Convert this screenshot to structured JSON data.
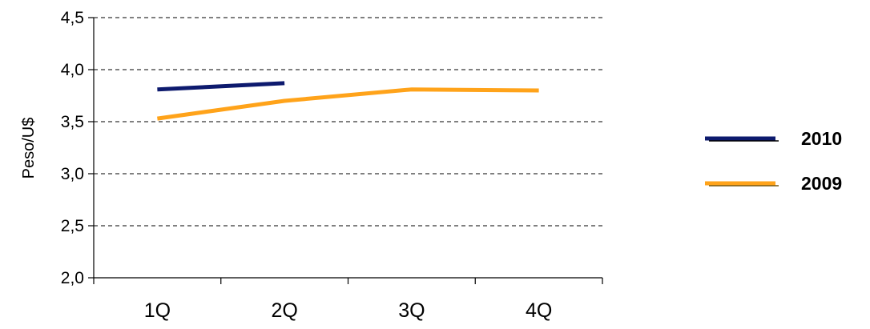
{
  "chart_data": {
    "type": "line",
    "categories": [
      "1Q",
      "2Q",
      "3Q",
      "4Q"
    ],
    "series": [
      {
        "name": "2010",
        "color": "#0d1a6e",
        "values": [
          3.81,
          3.87,
          null,
          null
        ]
      },
      {
        "name": "2009",
        "color": "#ffa31a",
        "values": [
          3.53,
          3.7,
          3.81,
          3.8
        ]
      }
    ],
    "ylabel": "Peso/U$",
    "ylim": [
      2.0,
      4.5
    ],
    "yticks": [
      "2,0",
      "2,5",
      "3,0",
      "3,5",
      "4,0",
      "4,5"
    ],
    "ytick_values": [
      2.0,
      2.5,
      3.0,
      3.5,
      4.0,
      4.5
    ],
    "grid": "horizontal-dashed",
    "legend": "right"
  }
}
